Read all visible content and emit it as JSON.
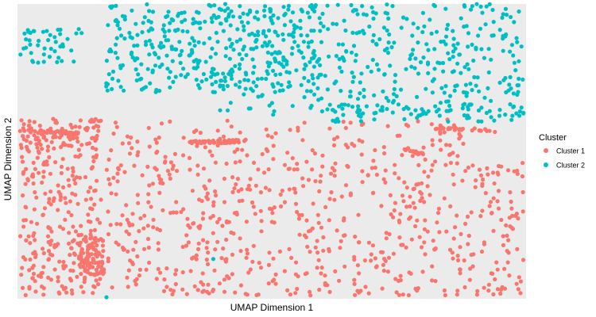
{
  "chart_data": {
    "type": "scatter",
    "title": "",
    "xlabel": "UMAP Dimension 1",
    "ylabel": "UMAP Dimension 2",
    "xlim": [
      0,
      100
    ],
    "ylim": [
      0,
      100
    ],
    "grid": false,
    "panel_background": "#ebebeb",
    "legend_position": "right",
    "legend_title": "Cluster",
    "series": [
      {
        "name": "Cluster 1",
        "color": "#f8766d"
      },
      {
        "name": "Cluster 2",
        "color": "#00bfc4"
      }
    ],
    "note": "Each series renders as a dense field of points; point coordinates are procedurally sampled to match the visible cluster regions."
  }
}
